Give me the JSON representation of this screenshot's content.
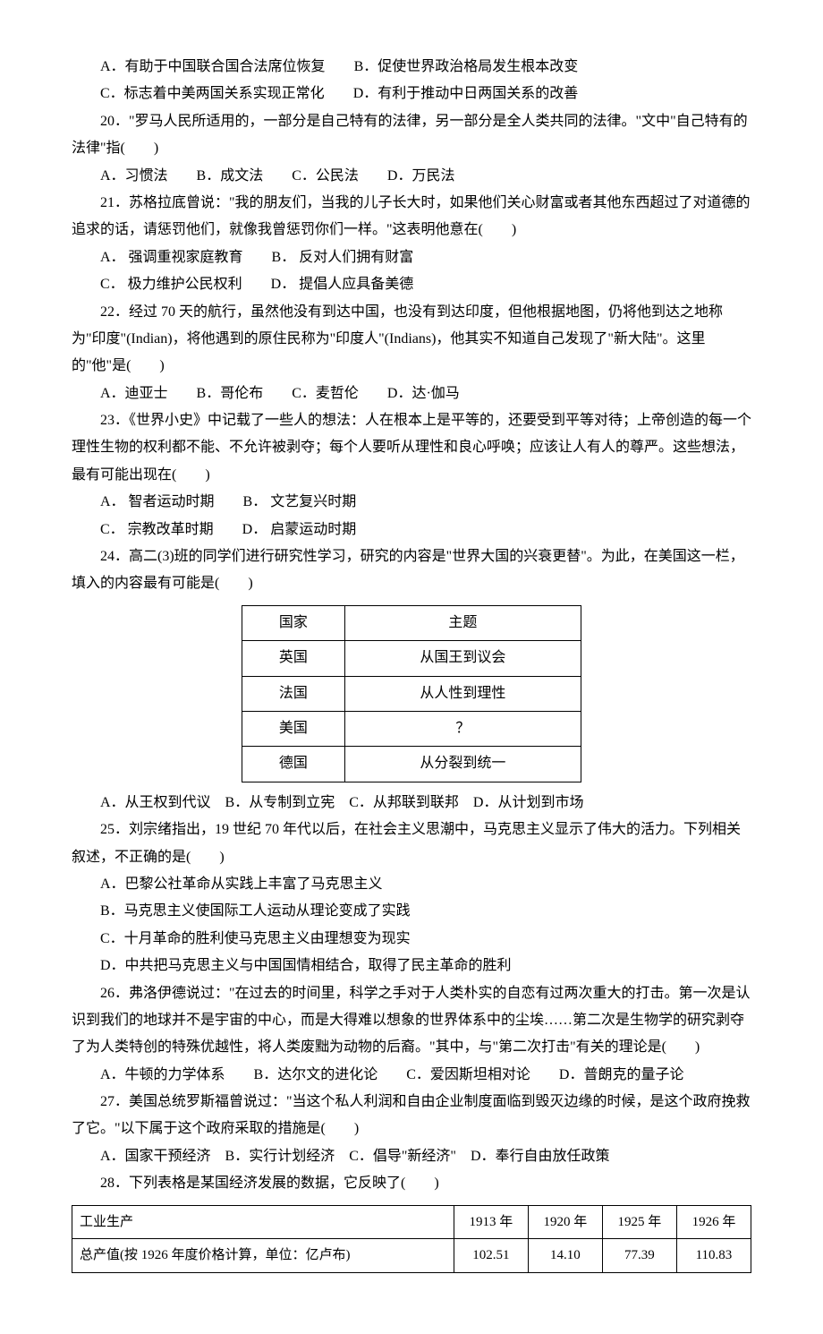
{
  "q19": {
    "optA": "A．有助于中国联合国合法席位恢复",
    "optB": "B．促使世界政治格局发生根本改变",
    "optC": "C．标志着中美两国关系实现正常化",
    "optD": "D．有利于推动中日两国关系的改善"
  },
  "q20": {
    "stem": "20．\"罗马人民所适用的，一部分是自己特有的法律，另一部分是全人类共同的法律。\"文中\"自己特有的法律\"指(　　)",
    "opts": "A．习惯法　　B．成文法　　C．公民法　　D．万民法"
  },
  "q21": {
    "stem": "21．苏格拉底曾说：\"我的朋友们，当我的儿子长大时，如果他们关心财富或者其他东西超过了对道德的追求的话，请惩罚他们，就像我曾惩罚你们一样。\"这表明他意在(　　)",
    "optAB": "A． 强调重视家庭教育　　B． 反对人们拥有财富",
    "optCD": "C． 极力维护公民权利　　D． 提倡人应具备美德"
  },
  "q22": {
    "stem": "22．经过 70 天的航行，虽然他没有到达中国，也没有到达印度，但他根据地图，仍将他到达之地称为\"印度\"(Indian)，将他遇到的原住民称为\"印度人\"(Indians)，他其实不知道自己发现了\"新大陆\"。这里的\"他\"是(　　)",
    "opts": "A．迪亚士　　B．哥伦布　　C．麦哲伦　　D．达·伽马"
  },
  "q23": {
    "stem": "23．《世界小史》中记载了一些人的想法：人在根本上是平等的，还要受到平等对待；上帝创造的每一个理性生物的权利都不能、不允许被剥夺；每个人要听从理性和良心呼唤；应该让人有人的尊严。这些想法，最有可能出现在(　　)",
    "optAB": "A． 智者运动时期　　B． 文艺复兴时期",
    "optCD": "C． 宗教改革时期　　D． 启蒙运动时期"
  },
  "q24": {
    "stem": "24．高二(3)班的同学们进行研究性学习，研究的内容是\"世界大国的兴衰更替\"。为此，在美国这一栏，填入的内容最有可能是(　　)",
    "opts": "A．从王权到代议　B．从专制到立宪　C．从邦联到联邦　D．从计划到市场",
    "table": {
      "headers": [
        "国家",
        "主题"
      ],
      "rows": [
        [
          "英国",
          "从国王到议会"
        ],
        [
          "法国",
          "从人性到理性"
        ],
        [
          "美国",
          "？"
        ],
        [
          "德国",
          "从分裂到统一"
        ]
      ]
    }
  },
  "q25": {
    "stem": "25．刘宗绪指出，19 世纪 70 年代以后，在社会主义思潮中，马克思主义显示了伟大的活力。下列相关叙述，不正确的是(　　)",
    "optA": "A．巴黎公社革命从实践上丰富了马克思主义",
    "optB": "B．马克思主义使国际工人运动从理论变成了实践",
    "optC": "C．十月革命的胜利使马克思主义由理想变为现实",
    "optD": "D．中共把马克思主义与中国国情相结合，取得了民主革命的胜利"
  },
  "q26": {
    "stem": "26．弗洛伊德说过：\"在过去的时间里，科学之手对于人类朴实的自恋有过两次重大的打击。第一次是认识到我们的地球并不是宇宙的中心，而是大得难以想象的世界体系中的尘埃……第二次是生物学的研究剥夺了为人类特创的特殊优越性，将人类废黜为动物的后裔。\"其中，与\"第二次打击\"有关的理论是(　　)",
    "opts": "A．牛顿的力学体系　　B．达尔文的进化论　　C．爱因斯坦相对论　　D．普朗克的量子论"
  },
  "q27": {
    "stem": "27．美国总统罗斯福曾说过：\"当这个私人利润和自由企业制度面临到毁灭边缘的时候，是这个政府挽救了它。\"以下属于这个政府采取的措施是(　　)",
    "opts": "A．国家干预经济　B．实行计划经济　C．倡导\"新经济\"　D．奉行自由放任政策"
  },
  "q28": {
    "stem": "28．下列表格是某国经济发展的数据，它反映了(　　)",
    "table": {
      "headers": [
        "工业生产",
        "1913 年",
        "1920 年",
        "1925 年",
        "1926 年"
      ],
      "row": [
        "总产值(按 1926 年度价格计算，单位：亿卢布)",
        "102.51",
        "14.10",
        "77.39",
        "110.83"
      ]
    }
  }
}
